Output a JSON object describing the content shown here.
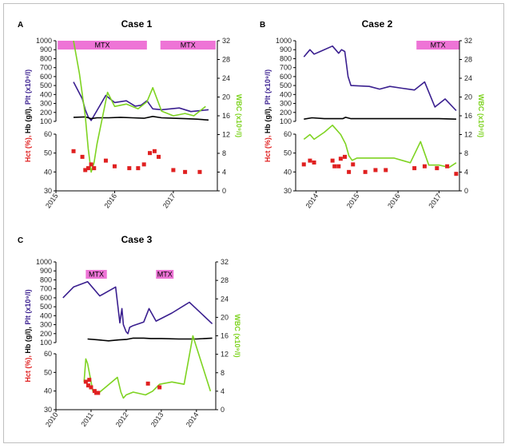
{
  "chart_data": [
    {
      "type": "line",
      "panel_letter": "A",
      "title": "Case 1",
      "xlim": [
        2015,
        2017.75
      ],
      "x_ticks": [
        "2015",
        "2016",
        "2017"
      ],
      "upper_left_ticks": [
        "1000",
        "900",
        "800",
        "700",
        "600",
        "500",
        "400",
        "300",
        "200",
        "100"
      ],
      "lower_left_ticks": [
        "60",
        "50",
        "40",
        "30"
      ],
      "right_ticks": [
        "32",
        "28",
        "24",
        "20",
        "16",
        "12",
        "8",
        "4",
        "0"
      ],
      "ylim_left_upper": [
        100,
        1000
      ],
      "ylim_left_lower": [
        30,
        60
      ],
      "ylim_right": [
        0,
        32
      ],
      "ylabel_left_parts": [
        {
          "text": "Hct (%), ",
          "color": "#e02020"
        },
        {
          "text": "Hb (g/l), ",
          "color": "#000000"
        },
        {
          "text": "Plt (x10⁹/l)",
          "color": "#3a1f8f"
        }
      ],
      "ylabel_right": "WBC (x10⁹/l)",
      "mtx_periods": [
        {
          "label": "MTX",
          "start": 2015.03,
          "end": 2016.55
        },
        {
          "label": "MTX",
          "start": 2016.78,
          "end": 2017.72
        }
      ],
      "series": [
        {
          "key": "plt",
          "axis": "upper",
          "color": "#3a1f8f",
          "x": [
            2015.3,
            2015.45,
            2015.5,
            2015.55,
            2015.6,
            2015.85,
            2016.0,
            2016.2,
            2016.35,
            2016.45,
            2016.55,
            2016.65,
            2016.8,
            2017.1,
            2017.3,
            2017.6
          ],
          "y": [
            540,
            350,
            230,
            150,
            110,
            390,
            310,
            330,
            270,
            280,
            330,
            240,
            230,
            250,
            210,
            230
          ]
        },
        {
          "key": "hb",
          "axis": "upper",
          "color": "#000000",
          "x": [
            2015.3,
            2015.5,
            2015.6,
            2015.7,
            2015.9,
            2016.1,
            2016.3,
            2016.5,
            2016.65,
            2016.8,
            2017.0,
            2017.2,
            2017.4,
            2017.6
          ],
          "y": [
            145,
            150,
            130,
            140,
            140,
            145,
            140,
            135,
            155,
            140,
            135,
            130,
            125,
            115
          ]
        },
        {
          "key": "wbc",
          "axis": "right",
          "color": "#7ed321",
          "x": [
            2015.3,
            2015.4,
            2015.5,
            2015.55,
            2015.6,
            2015.65,
            2015.7,
            2015.88,
            2016.0,
            2016.2,
            2016.4,
            2016.55,
            2016.65,
            2016.8,
            2017.0,
            2017.2,
            2017.35,
            2017.55
          ],
          "y": [
            32,
            25,
            16,
            9,
            4,
            6,
            10,
            21,
            18,
            18.5,
            17.5,
            19,
            22,
            17,
            16,
            16.5,
            16,
            18
          ]
        },
        {
          "key": "hct",
          "axis": "lower",
          "color": "#e02020",
          "mode": "markers",
          "x": [
            2015.3,
            2015.45,
            2015.5,
            2015.55,
            2015.6,
            2015.65,
            2015.85,
            2016.0,
            2016.25,
            2016.4,
            2016.5,
            2016.6,
            2016.68,
            2016.75,
            2017.0,
            2017.2,
            2017.45
          ],
          "y": [
            51,
            48,
            41,
            42,
            44,
            42,
            46,
            43,
            42,
            42,
            44,
            50,
            51,
            48,
            41,
            40,
            40
          ]
        }
      ]
    },
    {
      "type": "line",
      "panel_letter": "B",
      "title": "Case 2",
      "xlim": [
        2013.5,
        2017.5
      ],
      "x_ticks": [
        "2014",
        "2015",
        "2016",
        "2017"
      ],
      "upper_left_ticks": [
        "1000",
        "900",
        "800",
        "700",
        "600",
        "500",
        "400",
        "300",
        "200",
        "100"
      ],
      "lower_left_ticks": [
        "60",
        "50",
        "40",
        "30"
      ],
      "right_ticks": [
        "32",
        "28",
        "24",
        "20",
        "16",
        "12",
        "8",
        "4",
        "0"
      ],
      "ylim_left_upper": [
        100,
        1000
      ],
      "ylim_left_lower": [
        30,
        60
      ],
      "ylim_right": [
        0,
        32
      ],
      "ylabel_left_parts": [
        {
          "text": "Hct (%), ",
          "color": "#e02020"
        },
        {
          "text": "Hb (g/l), ",
          "color": "#000000"
        },
        {
          "text": "Plt (x10⁹/l)",
          "color": "#3a1f8f"
        }
      ],
      "ylabel_right": "WBC (x10⁹/l)",
      "mtx_periods": [
        {
          "label": "MTX",
          "start": 2016.45,
          "end": 2017.5
        }
      ],
      "series": [
        {
          "key": "plt",
          "axis": "upper",
          "color": "#3a1f8f",
          "x": [
            2013.7,
            2013.85,
            2013.95,
            2014.1,
            2014.4,
            2014.55,
            2014.62,
            2014.7,
            2014.78,
            2014.85,
            2015.3,
            2015.55,
            2015.8,
            2016.1,
            2016.4,
            2016.65,
            2016.9,
            2017.15,
            2017.42
          ],
          "y": [
            820,
            900,
            850,
            880,
            940,
            860,
            900,
            880,
            600,
            500,
            490,
            460,
            490,
            470,
            450,
            540,
            260,
            350,
            220
          ]
        },
        {
          "key": "hb",
          "axis": "upper",
          "color": "#000000",
          "x": [
            2013.7,
            2013.9,
            2014.2,
            2014.5,
            2014.65,
            2014.72,
            2014.85,
            2015.2,
            2015.6,
            2016.0,
            2016.5,
            2017.0,
            2017.42
          ],
          "y": [
            125,
            140,
            130,
            130,
            130,
            145,
            130,
            130,
            130,
            130,
            130,
            130,
            125
          ]
        },
        {
          "key": "wbc",
          "axis": "right",
          "color": "#7ed321",
          "x": [
            2013.7,
            2013.85,
            2013.95,
            2014.2,
            2014.4,
            2014.6,
            2014.72,
            2014.8,
            2014.88,
            2015.0,
            2015.3,
            2015.6,
            2015.9,
            2016.3,
            2016.55,
            2016.75,
            2017.0,
            2017.25,
            2017.42
          ],
          "y": [
            11,
            12,
            11,
            12.5,
            14,
            12,
            10,
            7.5,
            6.5,
            7,
            7,
            7,
            7,
            6,
            10.5,
            5.5,
            5.5,
            5,
            6
          ]
        },
        {
          "key": "hct",
          "axis": "lower",
          "color": "#e02020",
          "mode": "markers",
          "x": [
            2013.7,
            2013.85,
            2013.95,
            2014.4,
            2014.45,
            2014.55,
            2014.6,
            2014.7,
            2014.8,
            2014.9,
            2015.2,
            2015.45,
            2015.7,
            2016.4,
            2016.65,
            2016.95,
            2017.2,
            2017.42
          ],
          "y": [
            44,
            46,
            45,
            46,
            43,
            43,
            47,
            48,
            40,
            44,
            40,
            41,
            41,
            42,
            43,
            42,
            43,
            39
          ]
        }
      ]
    },
    {
      "type": "line",
      "panel_letter": "C",
      "title": "Case 3",
      "xlim": [
        2010,
        2014.55
      ],
      "x_ticks": [
        "2010",
        "2011",
        "2012",
        "2013",
        "2014"
      ],
      "upper_left_ticks": [
        "1000",
        "900",
        "800",
        "700",
        "600",
        "500",
        "400",
        "300",
        "200",
        "100"
      ],
      "lower_left_ticks": [
        "60",
        "50",
        "40",
        "30"
      ],
      "right_ticks": [
        "32",
        "28",
        "24",
        "20",
        "16",
        "12",
        "8",
        "4",
        "0"
      ],
      "ylim_left_upper": [
        100,
        1000
      ],
      "ylim_left_lower": [
        30,
        60
      ],
      "ylim_right": [
        0,
        32
      ],
      "ylabel_left_parts": [
        {
          "text": "Hct (%), ",
          "color": "#e02020"
        },
        {
          "text": "Hb (g/l), ",
          "color": "#000000"
        },
        {
          "text": "Plt (x10⁹/l)",
          "color": "#3a1f8f"
        }
      ],
      "ylabel_right": "WBC (x10⁹/l)",
      "mtx_periods": [
        {
          "label": "MTX",
          "start": 2010.85,
          "end": 2011.45
        },
        {
          "label": "MTX",
          "start": 2012.85,
          "end": 2013.35
        }
      ],
      "series": [
        {
          "key": "plt",
          "axis": "upper",
          "color": "#3a1f8f",
          "x": [
            2010.2,
            2010.5,
            2010.9,
            2011.25,
            2011.7,
            2011.82,
            2011.88,
            2011.92,
            2012.0,
            2012.05,
            2012.1,
            2012.2,
            2012.5,
            2012.65,
            2012.85,
            2013.3,
            2013.8,
            2014.45
          ],
          "y": [
            600,
            720,
            780,
            620,
            720,
            320,
            480,
            300,
            220,
            200,
            270,
            290,
            330,
            480,
            340,
            430,
            550,
            310
          ]
        },
        {
          "key": "hb",
          "axis": "upper",
          "color": "#000000",
          "x": [
            2010.9,
            2011.2,
            2011.5,
            2011.8,
            2012.0,
            2012.2,
            2012.5,
            2012.7,
            2013.0,
            2013.5,
            2014.0,
            2014.45
          ],
          "y": [
            140,
            130,
            120,
            130,
            135,
            150,
            150,
            145,
            145,
            140,
            140,
            150
          ]
        },
        {
          "key": "wbc",
          "axis": "right",
          "color": "#7ed321",
          "x": [
            2010.8,
            2010.85,
            2010.9,
            2011.05,
            2011.2,
            2011.75,
            2011.85,
            2011.92,
            2012.0,
            2012.2,
            2012.55,
            2012.75,
            2012.95,
            2013.3,
            2013.65,
            2013.9,
            2014.4
          ],
          "y": [
            6,
            11,
            10,
            4,
            3.5,
            7,
            3.8,
            2.5,
            3.2,
            3.8,
            3.2,
            4,
            5.5,
            6,
            5.5,
            16,
            4
          ]
        },
        {
          "key": "hct",
          "axis": "lower",
          "color": "#e02020",
          "mode": "markers",
          "x": [
            2010.85,
            2010.92,
            2010.95,
            2011.0,
            2011.1,
            2011.15,
            2011.2,
            2012.62,
            2012.95
          ],
          "y": [
            45,
            43,
            46,
            42,
            40,
            39,
            39,
            44,
            42
          ]
        }
      ]
    }
  ]
}
